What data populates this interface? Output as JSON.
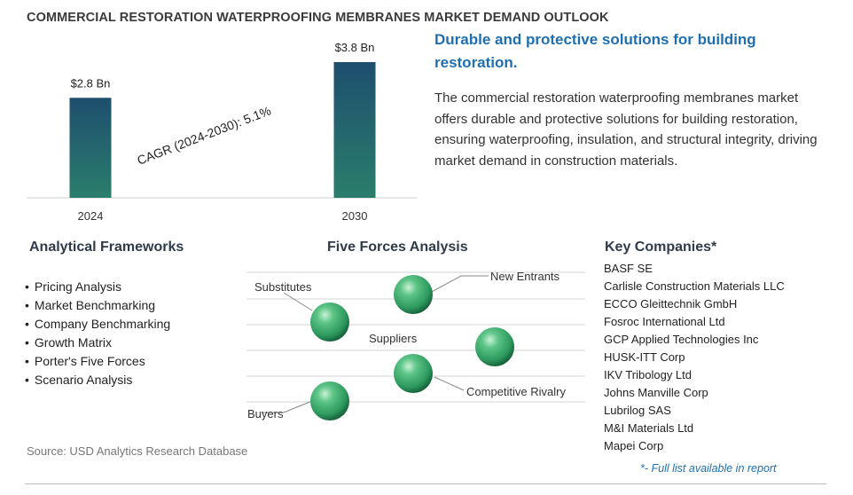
{
  "title": "COMMERCIAL RESTORATION WATERPROOFING MEMBRANES MARKET DEMAND OUTLOOK",
  "chart_data": {
    "type": "bar",
    "categories": [
      "2024",
      "2030"
    ],
    "values": [
      2.8,
      3.8
    ],
    "data_labels": [
      "$2.8 Bn",
      "$3.8 Bn"
    ],
    "annotation": "CAGR (2024-2030):  5.1%",
    "unit": "Bn",
    "ylim": [
      0,
      3.8
    ],
    "colors": {
      "bar_top": "#1e4e6e",
      "bar_bottom": "#2a7e6c"
    }
  },
  "headline": "Durable and protective solutions for building restoration.",
  "description": "The commercial restoration waterproofing membranes market offers durable and protective solutions for building restoration, ensuring waterproofing, insulation, and structural integrity, driving market demand in construction materials.",
  "frameworks": {
    "title": "Analytical Frameworks",
    "items": [
      "Pricing Analysis",
      "Market Benchmarking",
      "Company Benchmarking",
      "Growth Matrix",
      "Porter's Five Forces",
      "Scenario Analysis"
    ]
  },
  "five_forces": {
    "title": "Five Forces Analysis",
    "labels": {
      "substitutes": "Substitutes",
      "new_entrants": "New Entrants",
      "suppliers": "Suppliers",
      "competitive_rivalry": "Competitive Rivalry",
      "buyers": "Buyers"
    },
    "sphere_color": "#2e9a5e"
  },
  "companies": {
    "title": "Key Companies*",
    "items": [
      "BASF SE",
      "Carlisle Construction Materials LLC",
      "ECCO Gleittechnik GmbH",
      "Fosroc International Ltd",
      "GCP Applied Technologies Inc",
      "HUSK-ITT Corp",
      "IKV Tribology Ltd",
      "Johns Manville Corp",
      "Lubrilog SAS",
      "M&I Materials Ltd",
      "Mapei Corp"
    ],
    "footnote": "*- Full list available in report"
  },
  "source": "Source: USD Analytics Research Database"
}
